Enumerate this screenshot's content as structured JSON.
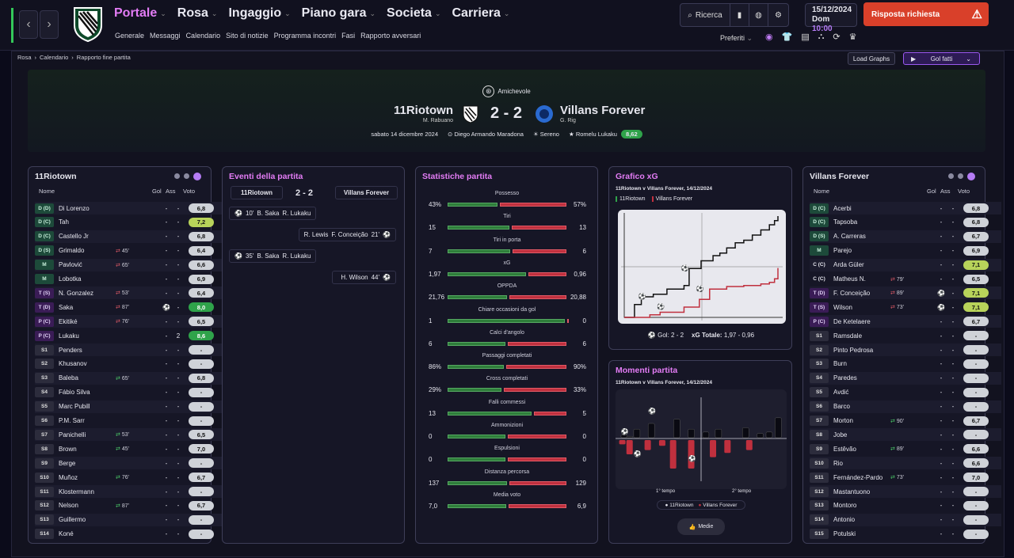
{
  "nav": {
    "main": [
      {
        "label": "Portale",
        "active": true
      },
      {
        "label": "Rosa",
        "active": false
      },
      {
        "label": "Ingaggio",
        "active": false
      },
      {
        "label": "Piano gara",
        "active": false
      },
      {
        "label": "Societa",
        "active": false
      },
      {
        "label": "Carriera",
        "active": false
      }
    ],
    "sub": [
      "Generale",
      "Messaggi",
      "Calendario",
      "Sito di notizie",
      "Programma incontri",
      "Fasi",
      "Rapporto avversari"
    ],
    "search_label": "Ricerca",
    "date": "15/12/2024",
    "day": "Dom",
    "time": "10:00",
    "response_label": "Risposta richiesta",
    "favorites_label": "Preferiti"
  },
  "breadcrumb": [
    "Rosa",
    "Calendario",
    "Rapporto fine partita"
  ],
  "actions": {
    "load_graphs": "Load Graphs",
    "goals_menu": "Gol fatti"
  },
  "match": {
    "competition": "Amichevole",
    "home": "11Riotown",
    "home_manager": "M. Rabuano",
    "away": "Villans Forever",
    "away_manager": "G. Rig",
    "score": "2 - 2",
    "date": "sabato 14 dicembre 2024",
    "stadium": "Diego Armando Maradona",
    "weather": "Sereno",
    "motm": "Romelu Lukaku",
    "motm_rating": "8,62"
  },
  "home_panel": {
    "title": "11Riotown",
    "headers": {
      "name": "Nome",
      "gol": "Gol",
      "ass": "Ass",
      "rating": "Voto"
    },
    "players": [
      {
        "pos": "D (D)",
        "name": "Di Lorenzo",
        "sub": "",
        "gol": "-",
        "ass": "-",
        "rating": "6,8",
        "r": ""
      },
      {
        "pos": "D (C)",
        "name": "Tah",
        "sub": "",
        "gol": "-",
        "ass": "-",
        "rating": "7,2",
        "r": "y"
      },
      {
        "pos": "D (C)",
        "name": "Castello Jr",
        "sub": "",
        "gol": "-",
        "ass": "-",
        "rating": "6,8",
        "r": ""
      },
      {
        "pos": "D (S)",
        "name": "Grimaldo",
        "sub": "45'",
        "dir": "out",
        "gol": "-",
        "ass": "-",
        "rating": "6,4",
        "r": ""
      },
      {
        "pos": "M",
        "name": "Pavlović",
        "sub": "65'",
        "dir": "out",
        "gol": "-",
        "ass": "-",
        "rating": "6,6",
        "r": ""
      },
      {
        "pos": "M",
        "name": "Lobotka",
        "sub": "",
        "gol": "-",
        "ass": "-",
        "rating": "6,9",
        "r": ""
      },
      {
        "pos": "T (S)",
        "name": "N. Gonzalez",
        "sub": "53'",
        "dir": "out",
        "gol": "-",
        "ass": "-",
        "rating": "6,4",
        "r": ""
      },
      {
        "pos": "T (D)",
        "name": "Saka",
        "sub": "87'",
        "dir": "out",
        "gol": "⚽",
        "ass": "-",
        "rating": "8,0",
        "r": "gg"
      },
      {
        "pos": "P (C)",
        "name": "Ekitiké",
        "sub": "76'",
        "dir": "out",
        "gol": "-",
        "ass": "-",
        "rating": "6,5",
        "r": ""
      },
      {
        "pos": "P (C)",
        "name": "Lukaku",
        "sub": "",
        "gol": "-",
        "ass": "2",
        "rating": "8,6",
        "r": "gg"
      },
      {
        "pos": "S1",
        "name": "Penders",
        "sub": "",
        "gol": "-",
        "ass": "-",
        "rating": "-",
        "r": ""
      },
      {
        "pos": "S2",
        "name": "Khusanov",
        "sub": "",
        "gol": "-",
        "ass": "-",
        "rating": "-",
        "r": ""
      },
      {
        "pos": "S3",
        "name": "Baleba",
        "sub": "65'",
        "dir": "in",
        "gol": "-",
        "ass": "-",
        "rating": "6,8",
        "r": ""
      },
      {
        "pos": "S4",
        "name": "Fábio Silva",
        "sub": "",
        "gol": "-",
        "ass": "-",
        "rating": "-",
        "r": ""
      },
      {
        "pos": "S5",
        "name": "Marc Pubill",
        "sub": "",
        "gol": "-",
        "ass": "-",
        "rating": "-",
        "r": ""
      },
      {
        "pos": "S6",
        "name": "P.M. Sarr",
        "sub": "",
        "gol": "-",
        "ass": "-",
        "rating": "-",
        "r": ""
      },
      {
        "pos": "S7",
        "name": "Panichelli",
        "sub": "53'",
        "dir": "in",
        "gol": "-",
        "ass": "-",
        "rating": "6,5",
        "r": ""
      },
      {
        "pos": "S8",
        "name": "Brown",
        "sub": "45'",
        "dir": "in",
        "gol": "-",
        "ass": "-",
        "rating": "7,0",
        "r": ""
      },
      {
        "pos": "S9",
        "name": "Berge",
        "sub": "",
        "gol": "-",
        "ass": "-",
        "rating": "-",
        "r": ""
      },
      {
        "pos": "S10",
        "name": "Muñoz",
        "sub": "76'",
        "dir": "in",
        "gol": "-",
        "ass": "-",
        "rating": "6,7",
        "r": ""
      },
      {
        "pos": "S11",
        "name": "Klostermann",
        "sub": "",
        "gol": "-",
        "ass": "-",
        "rating": "-",
        "r": ""
      },
      {
        "pos": "S12",
        "name": "Nelson",
        "sub": "87'",
        "dir": "in",
        "gol": "-",
        "ass": "-",
        "rating": "6,7",
        "r": ""
      },
      {
        "pos": "S13",
        "name": "Guillermo",
        "sub": "",
        "gol": "-",
        "ass": "-",
        "rating": "-",
        "r": ""
      },
      {
        "pos": "S14",
        "name": "Koné",
        "sub": "",
        "gol": "-",
        "ass": "-",
        "rating": "-",
        "r": ""
      }
    ]
  },
  "away_panel": {
    "title": "Villans Forever",
    "headers": {
      "name": "Nome",
      "gol": "Gol",
      "ass": "Ass",
      "rating": "Voto"
    },
    "players": [
      {
        "pos": "D (C)",
        "name": "Acerbi",
        "sub": "",
        "gol": "-",
        "ass": "-",
        "rating": "6,8",
        "r": ""
      },
      {
        "pos": "D (C)",
        "name": "Tapsoba",
        "sub": "",
        "gol": "-",
        "ass": "-",
        "rating": "6,8",
        "r": ""
      },
      {
        "pos": "D (S)",
        "name": "A. Carreras",
        "sub": "",
        "gol": "-",
        "ass": "-",
        "rating": "6,7",
        "r": ""
      },
      {
        "pos": "M",
        "name": "Parejo",
        "sub": "",
        "gol": "-",
        "ass": "-",
        "rating": "6,9",
        "r": ""
      },
      {
        "pos": "C (C)",
        "name": "Arda Güler",
        "sub": "",
        "gol": "-",
        "ass": "-",
        "rating": "7,1",
        "r": "y"
      },
      {
        "pos": "C (C)",
        "name": "Matheus N.",
        "sub": "79'",
        "dir": "out",
        "gol": "-",
        "ass": "-",
        "rating": "6,5",
        "r": ""
      },
      {
        "pos": "T (D)",
        "name": "F. Conceição",
        "sub": "89'",
        "dir": "out",
        "gol": "⚽",
        "ass": "-",
        "rating": "7,1",
        "r": "y"
      },
      {
        "pos": "T (S)",
        "name": "Wilson",
        "sub": "73'",
        "dir": "out",
        "gol": "⚽",
        "ass": "-",
        "rating": "7,1",
        "r": "y"
      },
      {
        "pos": "P (C)",
        "name": "De Ketelaere",
        "sub": "",
        "gol": "-",
        "ass": "-",
        "rating": "6,7",
        "r": ""
      },
      {
        "pos": "S1",
        "name": "Ramsdale",
        "sub": "",
        "gol": "-",
        "ass": "-",
        "rating": "-",
        "r": ""
      },
      {
        "pos": "S2",
        "name": "Pinto Pedrosa",
        "sub": "",
        "gol": "-",
        "ass": "-",
        "rating": "-",
        "r": ""
      },
      {
        "pos": "S3",
        "name": "Burn",
        "sub": "",
        "gol": "-",
        "ass": "-",
        "rating": "-",
        "r": ""
      },
      {
        "pos": "S4",
        "name": "Paredes",
        "sub": "",
        "gol": "-",
        "ass": "-",
        "rating": "-",
        "r": ""
      },
      {
        "pos": "S5",
        "name": "Avdić",
        "sub": "",
        "gol": "-",
        "ass": "-",
        "rating": "-",
        "r": ""
      },
      {
        "pos": "S6",
        "name": "Barco",
        "sub": "",
        "gol": "-",
        "ass": "-",
        "rating": "-",
        "r": ""
      },
      {
        "pos": "S7",
        "name": "Morton",
        "sub": "90'",
        "dir": "in",
        "gol": "-",
        "ass": "-",
        "rating": "6,7",
        "r": ""
      },
      {
        "pos": "S8",
        "name": "Jobe",
        "sub": "",
        "gol": "-",
        "ass": "-",
        "rating": "-",
        "r": ""
      },
      {
        "pos": "S9",
        "name": "Estêvão",
        "sub": "89'",
        "dir": "in",
        "gol": "-",
        "ass": "-",
        "rating": "6,6",
        "r": ""
      },
      {
        "pos": "S10",
        "name": "Rio",
        "sub": "",
        "gol": "-",
        "ass": "-",
        "rating": "6,6",
        "r": ""
      },
      {
        "pos": "S11",
        "name": "Fernández-Pardo",
        "sub": "73'",
        "dir": "in",
        "gol": "-",
        "ass": "-",
        "rating": "7,0",
        "r": ""
      },
      {
        "pos": "S12",
        "name": "Mastantuono",
        "sub": "",
        "gol": "-",
        "ass": "-",
        "rating": "-",
        "r": ""
      },
      {
        "pos": "S13",
        "name": "Montoro",
        "sub": "",
        "gol": "-",
        "ass": "-",
        "rating": "-",
        "r": ""
      },
      {
        "pos": "S14",
        "name": "Antonio",
        "sub": "",
        "gol": "-",
        "ass": "-",
        "rating": "-",
        "r": ""
      },
      {
        "pos": "S15",
        "name": "Potulski",
        "sub": "",
        "gol": "-",
        "ass": "-",
        "rating": "-",
        "r": ""
      }
    ]
  },
  "events": {
    "title": "Eventi della partita",
    "home": "11Riotown",
    "score": "2 - 2",
    "away": "Villans Forever",
    "items": [
      {
        "side": "home",
        "minute": "10'",
        "scorer": "B. Saka",
        "assist": "R. Lukaku"
      },
      {
        "side": "away",
        "minute": "21'",
        "scorer": "F. Conceição",
        "assist": "R. Lewis"
      },
      {
        "side": "home",
        "minute": "35'",
        "scorer": "B. Saka",
        "assist": "R. Lukaku"
      },
      {
        "side": "away",
        "minute": "44'",
        "scorer": "H. Wilson",
        "assist": ""
      }
    ]
  },
  "stats": {
    "title": "Statistiche partita",
    "items": [
      {
        "label": "Possesso",
        "home": "43%",
        "away": "57%",
        "h": 43,
        "a": 57
      },
      {
        "label": "Tiri",
        "home": "15",
        "away": "13",
        "h": 15,
        "a": 13
      },
      {
        "label": "Tiri in porta",
        "home": "7",
        "away": "6",
        "h": 7,
        "a": 6
      },
      {
        "label": "xG",
        "home": "1,97",
        "away": "0,96",
        "h": 1.97,
        "a": 0.96
      },
      {
        "label": "OPPDA",
        "home": "21,76",
        "away": "20,88",
        "h": 21.76,
        "a": 20.88
      },
      {
        "label": "Chiare occasioni da gol",
        "home": "1",
        "away": "0",
        "h": 1,
        "a": 0
      },
      {
        "label": "Calci d'angolo",
        "home": "6",
        "away": "6",
        "h": 6,
        "a": 6
      },
      {
        "label": "Passaggi completati",
        "home": "86%",
        "away": "90%",
        "h": 86,
        "a": 90
      },
      {
        "label": "Cross completati",
        "home": "29%",
        "away": "33%",
        "h": 29,
        "a": 33
      },
      {
        "label": "Falli commessi",
        "home": "13",
        "away": "5",
        "h": 13,
        "a": 5
      },
      {
        "label": "Ammonizioni",
        "home": "0",
        "away": "0",
        "h": 0,
        "a": 0
      },
      {
        "label": "Espulsioni",
        "home": "0",
        "away": "0",
        "h": 0,
        "a": 0
      },
      {
        "label": "Distanza percorsa",
        "home": "137",
        "away": "129",
        "h": 137,
        "a": 129
      },
      {
        "label": "Media voto",
        "home": "7,0",
        "away": "6,9",
        "h": 7.0,
        "a": 6.9
      }
    ]
  },
  "xg": {
    "title": "Grafico xG",
    "subtitle": "11Riotown v Villans Forever, 14/12/2024",
    "legend_home": "11Riotown",
    "legend_away": "Villans Forever",
    "goals_label": "Gol:",
    "goals_value": "2 - 2",
    "total_label": "xG Totale:",
    "total_value": "1,97 - 0,96",
    "colors": {
      "home": "#111111",
      "away": "#c0303e"
    }
  },
  "moments": {
    "title": "Momenti partita",
    "subtitle": "11Riotown v Villans Forever, 14/12/2024",
    "first_half": "1° tempo",
    "second_half": "2° tempo",
    "legend_home": "11Riotown",
    "legend_away": "Villans Forever",
    "button": "Medie"
  },
  "chart_data": [
    {
      "type": "line",
      "title": "Grafico xG",
      "series": [
        {
          "name": "11Riotown",
          "x": [
            0,
            6,
            10,
            17,
            25,
            35,
            38,
            45,
            52,
            56,
            60,
            65,
            70,
            75,
            80,
            85,
            88,
            90
          ],
          "y": [
            0,
            0.25,
            0.4,
            0.45,
            0.55,
            0.62,
            0.95,
            1.1,
            1.2,
            1.25,
            1.35,
            1.45,
            1.5,
            1.6,
            1.7,
            1.8,
            1.88,
            1.97
          ]
        },
        {
          "name": "Villans Forever",
          "x": [
            0,
            15,
            21,
            35,
            44,
            50,
            60,
            70,
            80,
            85,
            88,
            90
          ],
          "y": [
            0,
            0.05,
            0.1,
            0.2,
            0.35,
            0.55,
            0.6,
            0.62,
            0.65,
            0.68,
            0.75,
            0.96
          ]
        }
      ]
    },
    {
      "type": "bar",
      "title": "Momenti partita",
      "series": [
        {
          "name": "11Riotown",
          "x": [
            3,
            6,
            10,
            18,
            32,
            40,
            48,
            55,
            70,
            78,
            83,
            88
          ],
          "y": [
            0.1,
            0.05,
            0.3,
            0.5,
            0.65,
            0.3,
            0.2,
            0.3,
            0.35,
            0.15,
            0.2,
            0.7
          ]
        },
        {
          "name": "Villans Forever",
          "x": [
            2,
            6,
            16,
            24,
            30,
            40,
            52,
            60,
            72
          ],
          "y": [
            0.15,
            0.5,
            0.35,
            0.2,
            1.0,
            1.0,
            0.6,
            0.45,
            0.35
          ]
        }
      ]
    }
  ]
}
